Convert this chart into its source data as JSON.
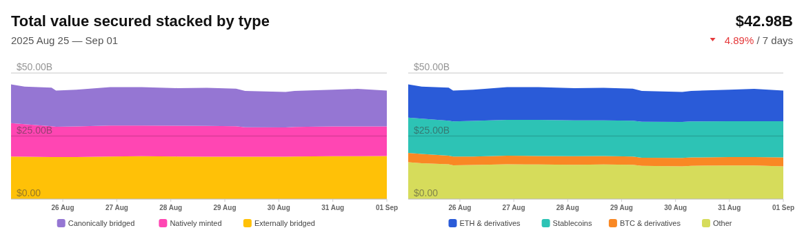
{
  "chart_data": [
    {
      "type": "area",
      "title": "Total value secured stacked by type",
      "subtitle": "2025 Aug 25 — Sep 01",
      "annotations": [
        "$42.98B",
        "4.89% / 7 days"
      ],
      "stacked": true,
      "grid": "y",
      "legend": "bottom",
      "x": [
        "2025-08-25T01:00",
        "2025-08-25T07:00",
        "2025-08-25T19:00",
        "2025-08-25T21:00",
        "2025-08-26T06:00",
        "2025-08-26T21:00",
        "2025-08-27T11:00",
        "2025-08-28T03:00",
        "2025-08-28T16:00",
        "2025-08-29T05:00",
        "2025-08-29T09:00",
        "2025-08-30T03:00",
        "2025-08-30T07:00",
        "2025-08-31T00:00",
        "2025-08-31T11:00",
        "2025-09-01T00:00"
      ],
      "xlim": [
        "2025-08-25T01:00",
        "2025-09-01T00:00"
      ],
      "xticks": [
        {
          "value": "2025-08-26",
          "label": "26 Aug"
        },
        {
          "value": "2025-08-27",
          "label": "27 Aug"
        },
        {
          "value": "2025-08-28",
          "label": "28 Aug"
        },
        {
          "value": "2025-08-29",
          "label": "29 Aug"
        },
        {
          "value": "2025-08-30",
          "label": "30 Aug"
        },
        {
          "value": "2025-08-31",
          "label": "31 Aug"
        },
        {
          "value": "2025-09-01",
          "label": "01 Sep"
        }
      ],
      "ylim": [
        0,
        50
      ],
      "yticks": [
        {
          "value": 0,
          "label": "$0.00"
        },
        {
          "value": 25,
          "label": "$25.00B"
        },
        {
          "value": 50,
          "label": "$50.00B"
        }
      ],
      "series": [
        {
          "name": "Externally bridged",
          "color": "#ffc107",
          "values": [
            16.9,
            16.8,
            16.7,
            16.7,
            16.7,
            16.9,
            17.0,
            16.9,
            16.8,
            16.8,
            16.8,
            16.8,
            16.9,
            17.0,
            17.0,
            17.1
          ]
        },
        {
          "name": "Natively minted",
          "color": "#ff46b3",
          "values": [
            13.2,
            12.9,
            12.2,
            12.0,
            12.1,
            12.3,
            12.2,
            12.2,
            12.2,
            12.1,
            11.7,
            11.6,
            11.7,
            11.8,
            11.8,
            11.7
          ]
        },
        {
          "name": "Canonically bridged",
          "color": "#9576d3",
          "values": [
            15.4,
            14.9,
            15.3,
            14.3,
            14.6,
            15.2,
            15.2,
            14.9,
            15.1,
            14.9,
            14.4,
            14.1,
            14.3,
            14.6,
            14.9,
            14.2
          ]
        }
      ]
    },
    {
      "type": "area",
      "stacked": true,
      "grid": "y",
      "legend": "bottom",
      "x": [
        "2025-08-25T01:00",
        "2025-08-25T07:00",
        "2025-08-25T19:00",
        "2025-08-25T21:00",
        "2025-08-26T06:00",
        "2025-08-26T21:00",
        "2025-08-27T11:00",
        "2025-08-28T03:00",
        "2025-08-28T16:00",
        "2025-08-29T05:00",
        "2025-08-29T09:00",
        "2025-08-30T03:00",
        "2025-08-30T07:00",
        "2025-08-31T00:00",
        "2025-08-31T11:00",
        "2025-09-01T00:00"
      ],
      "xlim": [
        "2025-08-25T01:00",
        "2025-09-01T00:00"
      ],
      "xticks": [
        {
          "value": "2025-08-26",
          "label": "26 Aug"
        },
        {
          "value": "2025-08-27",
          "label": "27 Aug"
        },
        {
          "value": "2025-08-28",
          "label": "28 Aug"
        },
        {
          "value": "2025-08-29",
          "label": "29 Aug"
        },
        {
          "value": "2025-08-30",
          "label": "30 Aug"
        },
        {
          "value": "2025-08-31",
          "label": "31 Aug"
        },
        {
          "value": "2025-09-01",
          "label": "01 Sep"
        }
      ],
      "ylim": [
        0,
        50
      ],
      "yticks": [
        {
          "value": 0,
          "label": "$0.00"
        },
        {
          "value": 25,
          "label": "$25.00B"
        },
        {
          "value": 50,
          "label": "$50.00B"
        }
      ],
      "series": [
        {
          "name": "Other",
          "color": "#d6dc5b",
          "values": [
            14.6,
            14.2,
            13.8,
            13.4,
            13.5,
            13.8,
            13.7,
            13.6,
            13.7,
            13.6,
            13.2,
            13.0,
            13.2,
            13.3,
            13.3,
            13.0
          ]
        },
        {
          "name": "BTC & derivatives",
          "color": "#f98824",
          "values": [
            3.7,
            3.7,
            3.4,
            3.5,
            3.4,
            3.4,
            3.4,
            3.4,
            3.4,
            3.3,
            3.2,
            3.3,
            3.3,
            3.4,
            3.4,
            3.5
          ]
        },
        {
          "name": "Stablecoins",
          "color": "#2dc3b5",
          "values": [
            14.0,
            14.0,
            13.9,
            13.9,
            14.1,
            14.2,
            14.3,
            14.2,
            14.1,
            14.2,
            14.3,
            14.3,
            14.3,
            14.2,
            14.2,
            14.4
          ]
        },
        {
          "name": "ETH & derivatives",
          "color": "#2a5bd8",
          "values": [
            13.2,
            12.7,
            13.1,
            12.2,
            12.4,
            13.0,
            13.0,
            12.8,
            12.9,
            12.7,
            12.2,
            11.9,
            12.1,
            12.5,
            12.8,
            12.1
          ]
        }
      ]
    }
  ]
}
